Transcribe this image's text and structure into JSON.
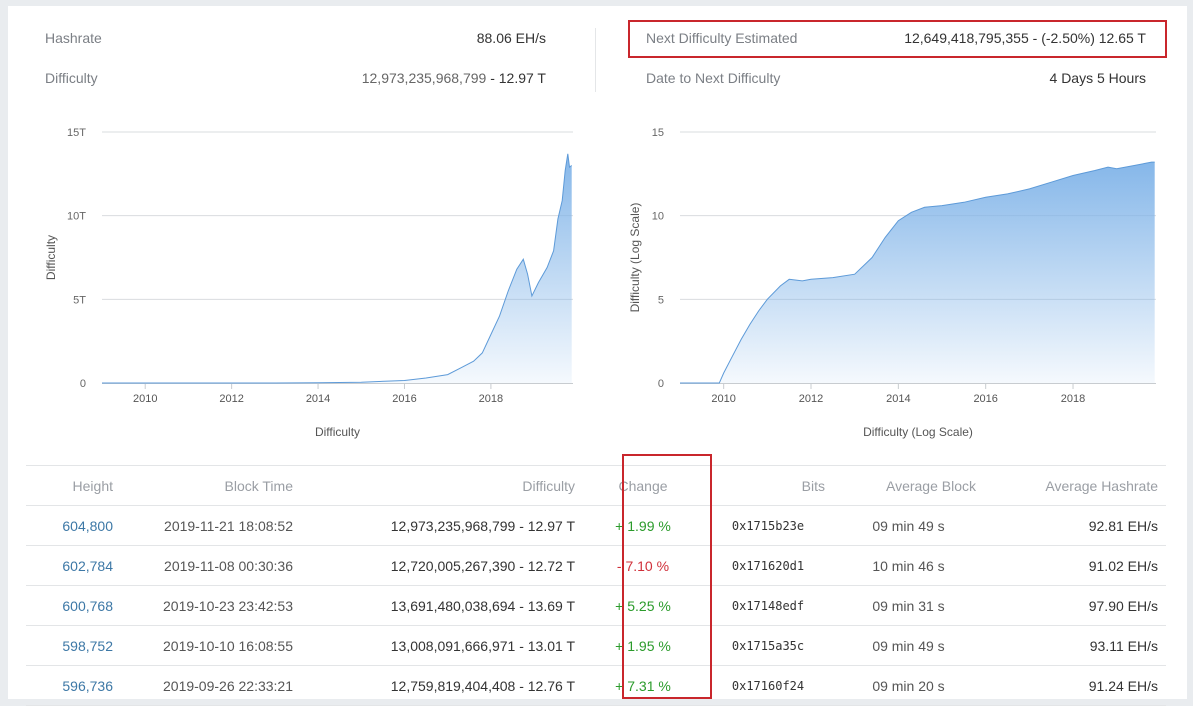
{
  "stats": {
    "hashrate_label": "Hashrate",
    "hashrate_value": "88.06 EH/s",
    "difficulty_label": "Difficulty",
    "difficulty_value": "12,973,235,968,799",
    "difficulty_sep": " - ",
    "difficulty_short": "12.97 T",
    "next_label": "Next Difficulty Estimated",
    "next_value": "12,649,418,795,355 - (-2.50%) 12.65 T",
    "date_label": "Date to Next Difficulty",
    "date_value": "4 Days 5 Hours"
  },
  "colors": {
    "accent": "#3d78a6",
    "area": "#7fb3e8",
    "highlight": "#c9262c",
    "positive": "#2b9b2b",
    "negative": "#d0303a"
  },
  "chart_data": [
    {
      "type": "area",
      "title": "",
      "xlabel": "Difficulty",
      "ylabel": "Difficulty",
      "x_ticks": [
        "2010",
        "2012",
        "2014",
        "2016",
        "2018"
      ],
      "y_ticks": [
        "0",
        "5T",
        "10T",
        "15T"
      ],
      "ylim": [
        0,
        15
      ],
      "xlim": [
        2009.0,
        2019.9
      ],
      "grid": true,
      "x": [
        2009.0,
        2010.0,
        2011.0,
        2012.0,
        2013.0,
        2014.0,
        2015.0,
        2016.0,
        2016.5,
        2017.0,
        2017.3,
        2017.6,
        2017.8,
        2018.0,
        2018.2,
        2018.4,
        2018.6,
        2018.75,
        2018.85,
        2018.95,
        2019.1,
        2019.3,
        2019.45,
        2019.55,
        2019.65,
        2019.72,
        2019.78,
        2019.82,
        2019.87
      ],
      "values": [
        0,
        0,
        0,
        0,
        0,
        0.01,
        0.05,
        0.15,
        0.3,
        0.5,
        0.9,
        1.3,
        1.8,
        2.9,
        4.0,
        5.5,
        6.8,
        7.4,
        6.5,
        5.2,
        6.0,
        6.9,
        7.9,
        9.8,
        10.9,
        12.7,
        13.7,
        12.9,
        13.0
      ]
    },
    {
      "type": "area",
      "title": "",
      "xlabel": "Difficulty (Log Scale)",
      "ylabel": "Difficulty (Log Scale)",
      "x_ticks": [
        "2010",
        "2012",
        "2014",
        "2016",
        "2018"
      ],
      "y_ticks": [
        "0",
        "5",
        "10",
        "15"
      ],
      "ylim": [
        0,
        15
      ],
      "xlim": [
        2009.0,
        2019.9
      ],
      "grid": true,
      "x": [
        2009.0,
        2009.5,
        2009.9,
        2010.0,
        2010.2,
        2010.4,
        2010.6,
        2010.8,
        2011.0,
        2011.3,
        2011.5,
        2011.8,
        2012.0,
        2012.5,
        2013.0,
        2013.4,
        2013.7,
        2014.0,
        2014.3,
        2014.6,
        2015.0,
        2015.5,
        2016.0,
        2016.5,
        2017.0,
        2017.5,
        2018.0,
        2018.5,
        2018.8,
        2019.0,
        2019.4,
        2019.8,
        2019.87
      ],
      "values": [
        0,
        0,
        0,
        0.6,
        1.6,
        2.6,
        3.5,
        4.3,
        5.0,
        5.8,
        6.2,
        6.1,
        6.2,
        6.3,
        6.5,
        7.5,
        8.7,
        9.7,
        10.2,
        10.5,
        10.6,
        10.8,
        11.1,
        11.3,
        11.6,
        12.0,
        12.4,
        12.7,
        12.9,
        12.8,
        13.0,
        13.2,
        13.2
      ]
    }
  ],
  "table": {
    "headers": [
      "Height",
      "Block Time",
      "Difficulty",
      "Change",
      "Bits",
      "Average Block",
      "Average Hashrate"
    ],
    "rows": [
      {
        "height": "604,800",
        "time": "2019-11-21 18:08:52",
        "difficulty": "12,973,235,968,799 - 12.97 T",
        "change": "+ 1.99 %",
        "change_sign": "pos",
        "bits": "0x1715b23e",
        "avg_block": "09 min 49 s",
        "avg_hashrate": "92.81 EH/s"
      },
      {
        "height": "602,784",
        "time": "2019-11-08 00:30:36",
        "difficulty": "12,720,005,267,390 - 12.72 T",
        "change": "- 7.10 %",
        "change_sign": "neg",
        "bits": "0x171620d1",
        "avg_block": "10 min 46 s",
        "avg_hashrate": "91.02 EH/s"
      },
      {
        "height": "600,768",
        "time": "2019-10-23 23:42:53",
        "difficulty": "13,691,480,038,694 - 13.69 T",
        "change": "+ 5.25 %",
        "change_sign": "pos",
        "bits": "0x17148edf",
        "avg_block": "09 min 31 s",
        "avg_hashrate": "97.90 EH/s"
      },
      {
        "height": "598,752",
        "time": "2019-10-10 16:08:55",
        "difficulty": "13,008,091,666,971 - 13.01 T",
        "change": "+ 1.95 %",
        "change_sign": "pos",
        "bits": "0x1715a35c",
        "avg_block": "09 min 49 s",
        "avg_hashrate": "93.11 EH/s"
      },
      {
        "height": "596,736",
        "time": "2019-09-26 22:33:21",
        "difficulty": "12,759,819,404,408 - 12.76 T",
        "change": "+ 7.31 %",
        "change_sign": "pos",
        "bits": "0x17160f24",
        "avg_block": "09 min 20 s",
        "avg_hashrate": "91.24 EH/s"
      }
    ]
  }
}
